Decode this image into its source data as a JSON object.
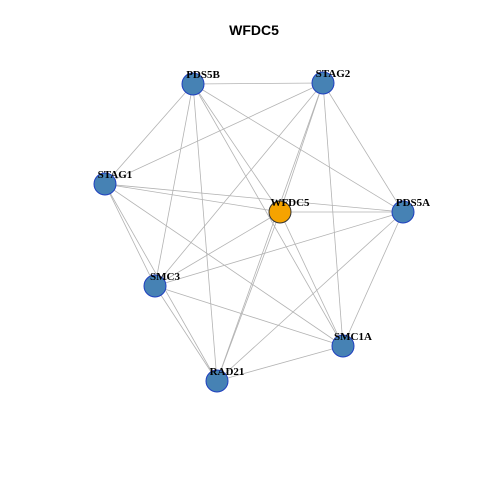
{
  "title": "WFDC5",
  "nodes": [
    {
      "label": "WFDC5"
    },
    {
      "label": "PDS5B"
    },
    {
      "label": "STAG2"
    },
    {
      "label": "STAG1"
    },
    {
      "label": "PDS5A"
    },
    {
      "label": "SMC3"
    },
    {
      "label": "SMC1A"
    },
    {
      "label": "RAD21"
    }
  ]
}
